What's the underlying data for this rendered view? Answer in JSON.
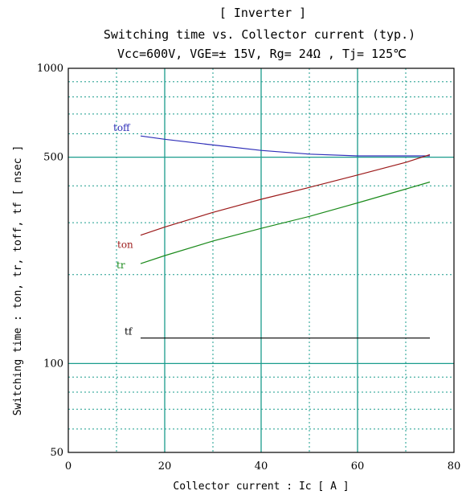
{
  "chart_data": {
    "type": "line",
    "title_lines": [
      "[ Inverter ]",
      "Switching time  vs.  Collector current  (typ.)",
      "Vcc=600V, VGE=± 15V, Rg= 24Ω , Tj= 125℃"
    ],
    "xlabel": "Collector current  :  Ic  [ A ]",
    "ylabel": "Switching time  :  ton, tr, toff, tf  [ nsec ]",
    "xlim": [
      0,
      80
    ],
    "ylim": [
      50,
      1000
    ],
    "yscale": "log",
    "x_ticks": [
      "0",
      "20",
      "40",
      "60",
      "80"
    ],
    "y_ticks": [
      "50",
      "100",
      "500",
      "1000"
    ],
    "grid": true,
    "colors": {
      "major_grid": "#1a9c8c",
      "minor_grid": "#1a9c8c",
      "frame": "#000000"
    },
    "series": [
      {
        "name": "toff",
        "color": "#2e2eb8",
        "x": [
          15,
          20,
          30,
          40,
          50,
          60,
          70,
          75
        ],
        "y": [
          590,
          575,
          550,
          527,
          512,
          505,
          505,
          505
        ]
      },
      {
        "name": "ton",
        "color": "#9c1a1a",
        "x": [
          15,
          20,
          30,
          40,
          50,
          60,
          70,
          75
        ],
        "y": [
          272,
          290,
          325,
          360,
          395,
          435,
          480,
          510
        ]
      },
      {
        "name": "tr",
        "color": "#1a8a1a",
        "x": [
          15,
          20,
          30,
          40,
          50,
          60,
          70,
          75
        ],
        "y": [
          218,
          232,
          260,
          287,
          315,
          350,
          390,
          412
        ]
      },
      {
        "name": "tf",
        "color": "#000000",
        "x": [
          15,
          75
        ],
        "y": [
          122,
          122
        ]
      }
    ]
  }
}
